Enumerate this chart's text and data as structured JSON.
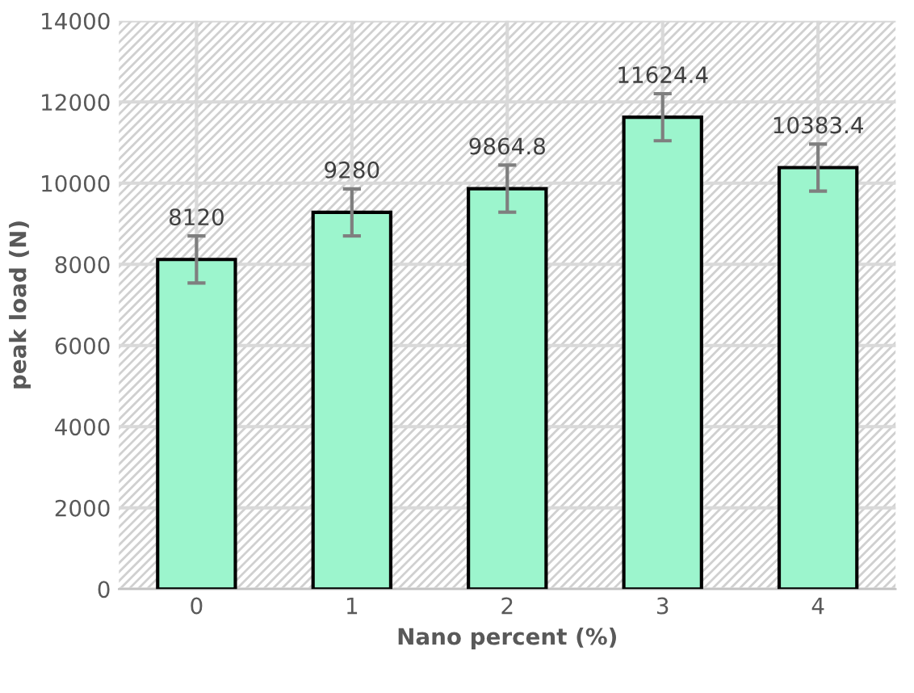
{
  "chart_data": {
    "type": "bar",
    "xlabel": "Nano percent (%)",
    "ylabel": "peak load (N)",
    "categories": [
      "0",
      "1",
      "2",
      "3",
      "4"
    ],
    "series": [
      {
        "color": "#9cf5cd",
        "values": [
          8120,
          9280,
          9864.8,
          11624.4,
          10383.4
        ],
        "errors": [
          580,
          580,
          580,
          580,
          580
        ]
      }
    ],
    "data_labels": true,
    "ylim": [
      0,
      14000
    ],
    "yticks": [
      0,
      2000,
      4000,
      6000,
      8000,
      10000,
      12000,
      14000
    ],
    "grid": true,
    "legend": false
  }
}
